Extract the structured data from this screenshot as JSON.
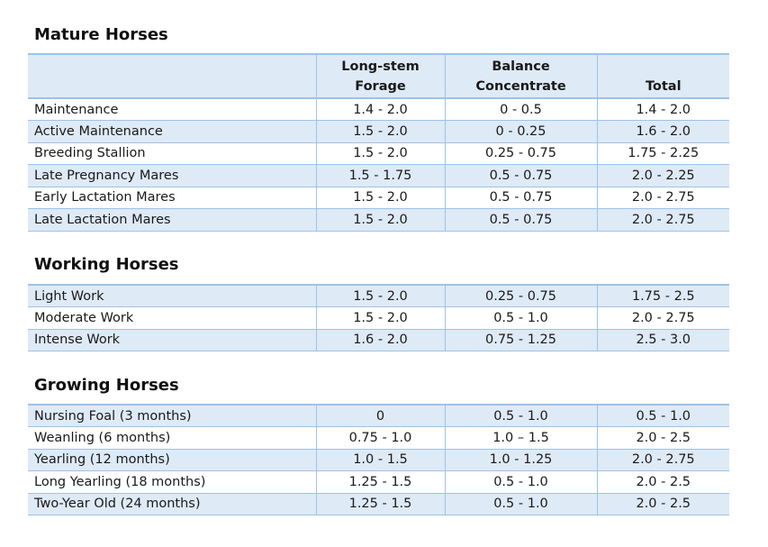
{
  "columns": [
    "",
    "Long-stem Forage",
    "Balance Concentrate",
    "Total"
  ],
  "header": {
    "col2_line1": "Long-stem",
    "col2_line2": "Forage",
    "col3_line1": "Balance",
    "col3_line2": "Concentrate",
    "col4_line1": "",
    "col4_line2": "Total"
  },
  "sections": [
    {
      "title": "Mature Horses",
      "rows": [
        [
          "Maintenance",
          "1.4 - 2.0",
          "0 - 0.5",
          "1.4 - 2.0"
        ],
        [
          "Active Maintenance",
          "1.5 - 2.0",
          "0 - 0.25",
          "1.6 - 2.0"
        ],
        [
          "Breeding Stallion",
          "1.5 - 2.0",
          "0.25 - 0.75",
          "1.75 - 2.25"
        ],
        [
          "Late Pregnancy Mares",
          "1.5 - 1.75",
          "0.5 - 0.75",
          "2.0 - 2.25"
        ],
        [
          "Early Lactation Mares",
          "1.5 - 2.0",
          "0.5 - 0.75",
          "2.0 - 2.75"
        ],
        [
          "Late Lactation Mares",
          "1.5 - 2.0",
          "0.5 - 0.75",
          "2.0 - 2.75"
        ]
      ]
    },
    {
      "title": "Working Horses",
      "rows": [
        [
          "Light Work",
          "1.5 - 2.0",
          "0.25 - 0.75",
          "1.75 - 2.5"
        ],
        [
          "Moderate Work",
          "1.5 - 2.0",
          "0.5 - 1.0",
          "2.0 - 2.75"
        ],
        [
          "Intense Work",
          "1.6 - 2.0",
          "0.75 - 1.25",
          "2.5 - 3.0"
        ]
      ]
    },
    {
      "title": "Growing Horses",
      "rows": [
        [
          "Nursing Foal (3 months)",
          "0",
          "0.5 - 1.0",
          "0.5 - 1.0"
        ],
        [
          "Weanling (6 months)",
          "0.75 - 1.0",
          "1.0 – 1.5",
          "2.0 - 2.5"
        ],
        [
          "Yearling (12 months)",
          "1.0 - 1.5",
          "1.0 - 1.25",
          "2.0 - 2.75"
        ],
        [
          "Long Yearling (18 months)",
          "1.25 - 1.5",
          "0.5 - 1.0",
          "2.0 - 2.5"
        ],
        [
          "Two-Year Old (24 months)",
          "1.25 - 1.5",
          "0.5 - 1.0",
          "2.0 - 2.5"
        ]
      ]
    }
  ],
  "colors": {
    "shade": "#deeaf6",
    "border": "#9dc3e6"
  }
}
